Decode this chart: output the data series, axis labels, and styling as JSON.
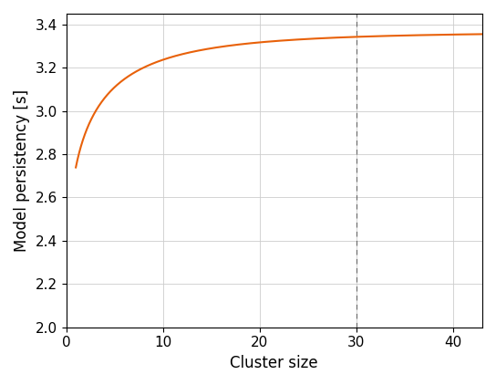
{
  "title": "",
  "xlabel": "Cluster size",
  "ylabel": "Model persistency [s]",
  "line_color": "#E8610A",
  "vline_x": 30,
  "vline_color": "#666666",
  "xlim": [
    0,
    43
  ],
  "ylim": [
    2.0,
    3.45
  ],
  "yticks": [
    2.0,
    2.2,
    2.4,
    2.6,
    2.8,
    3.0,
    3.2,
    3.4
  ],
  "xticks": [
    0,
    10,
    20,
    30,
    40
  ],
  "grid_color": "#cccccc",
  "background_color": "#ffffff",
  "curve_A": 3.365,
  "curve_B": 1.245,
  "curve_k": 1.05,
  "curve_alpha": 0.38,
  "x_start": 1.0,
  "x_end": 43.0
}
